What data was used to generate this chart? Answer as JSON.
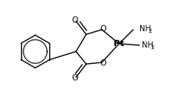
{
  "bg_color": "#ffffff",
  "line_color": "#000000",
  "lw": 1.0,
  "figsize": [
    2.17,
    1.23
  ],
  "dpi": 100,
  "xlim": [
    0,
    217
  ],
  "ylim": [
    0,
    123
  ]
}
